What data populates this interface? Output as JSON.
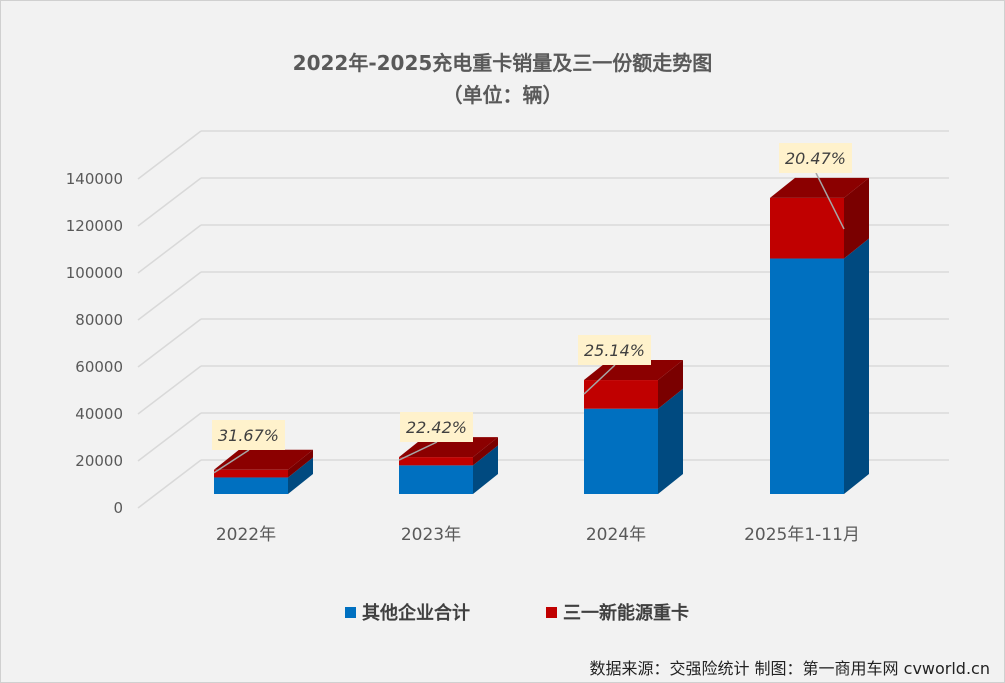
{
  "chart_data": {
    "type": "bar",
    "stacked": true,
    "three_d": true,
    "title": "2022年-2025充电重卡销量及三一份额走势图",
    "subtitle": "（单位：辆）",
    "categories": [
      "2022年",
      "2023年",
      "2024年",
      "2025年1-11月"
    ],
    "series": [
      {
        "name": "其他企业合计",
        "color": "#0070c0",
        "values": [
          7040,
          12180,
          36300,
          100200
        ]
      },
      {
        "name": "三一新能源重卡",
        "color": "#c00000",
        "values": [
          3260,
          3520,
          12190,
          25800
        ]
      }
    ],
    "data_labels": [
      "31.67%",
      "22.42%",
      "25.14%",
      "20.47%"
    ],
    "ylim": [
      0,
      140000
    ],
    "yticks": [
      "0",
      "20000",
      "40000",
      "60000",
      "80000",
      "100000",
      "120000",
      "140000"
    ],
    "grid": true,
    "legend": "bottom"
  },
  "footer": "数据来源：交强险统计  制图：第一商用车网 cvworld.cn"
}
